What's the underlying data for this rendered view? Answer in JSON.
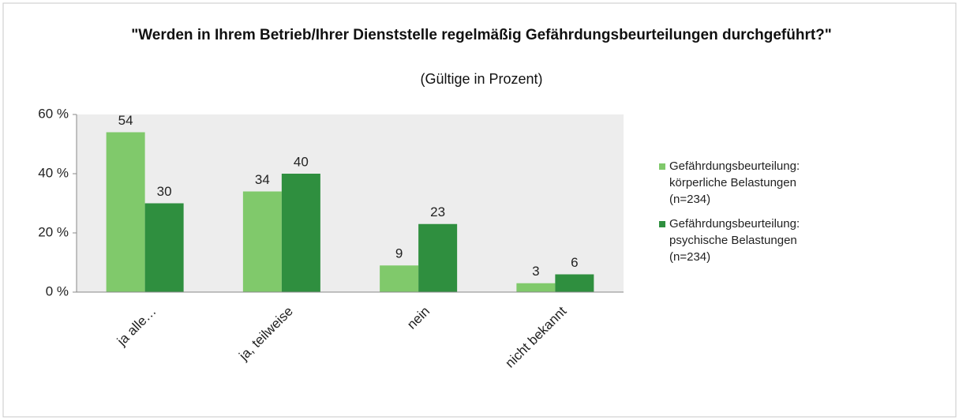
{
  "chart_data": {
    "type": "bar",
    "title": "\"Werden in Ihrem Betrieb/Ihrer Dienststelle regelmäßig Gefährdungsbeurteilungen durchgeführt?\"",
    "subtitle": "(Gültige in Prozent)",
    "categories": [
      "ja alle…",
      "ja, teilweise",
      "nein",
      "nicht bekannt"
    ],
    "series": [
      {
        "name": "Gefährdungsbeurteilung: körperliche Belastungen (n=234)",
        "color": "#80c96b",
        "values": [
          54,
          34,
          9,
          3
        ]
      },
      {
        "name": "Gefährdungsbeurteilung: psychische Belastungen (n=234)",
        "color": "#2f8f3f",
        "values": [
          30,
          40,
          23,
          6
        ]
      }
    ],
    "ylim": [
      0,
      60
    ],
    "yticks": [
      {
        "value": 0,
        "label": "0 %"
      },
      {
        "value": 20,
        "label": "20 %"
      },
      {
        "value": 40,
        "label": "40 %"
      },
      {
        "value": 60,
        "label": "60 %"
      }
    ],
    "grid": false,
    "legend": "right"
  }
}
